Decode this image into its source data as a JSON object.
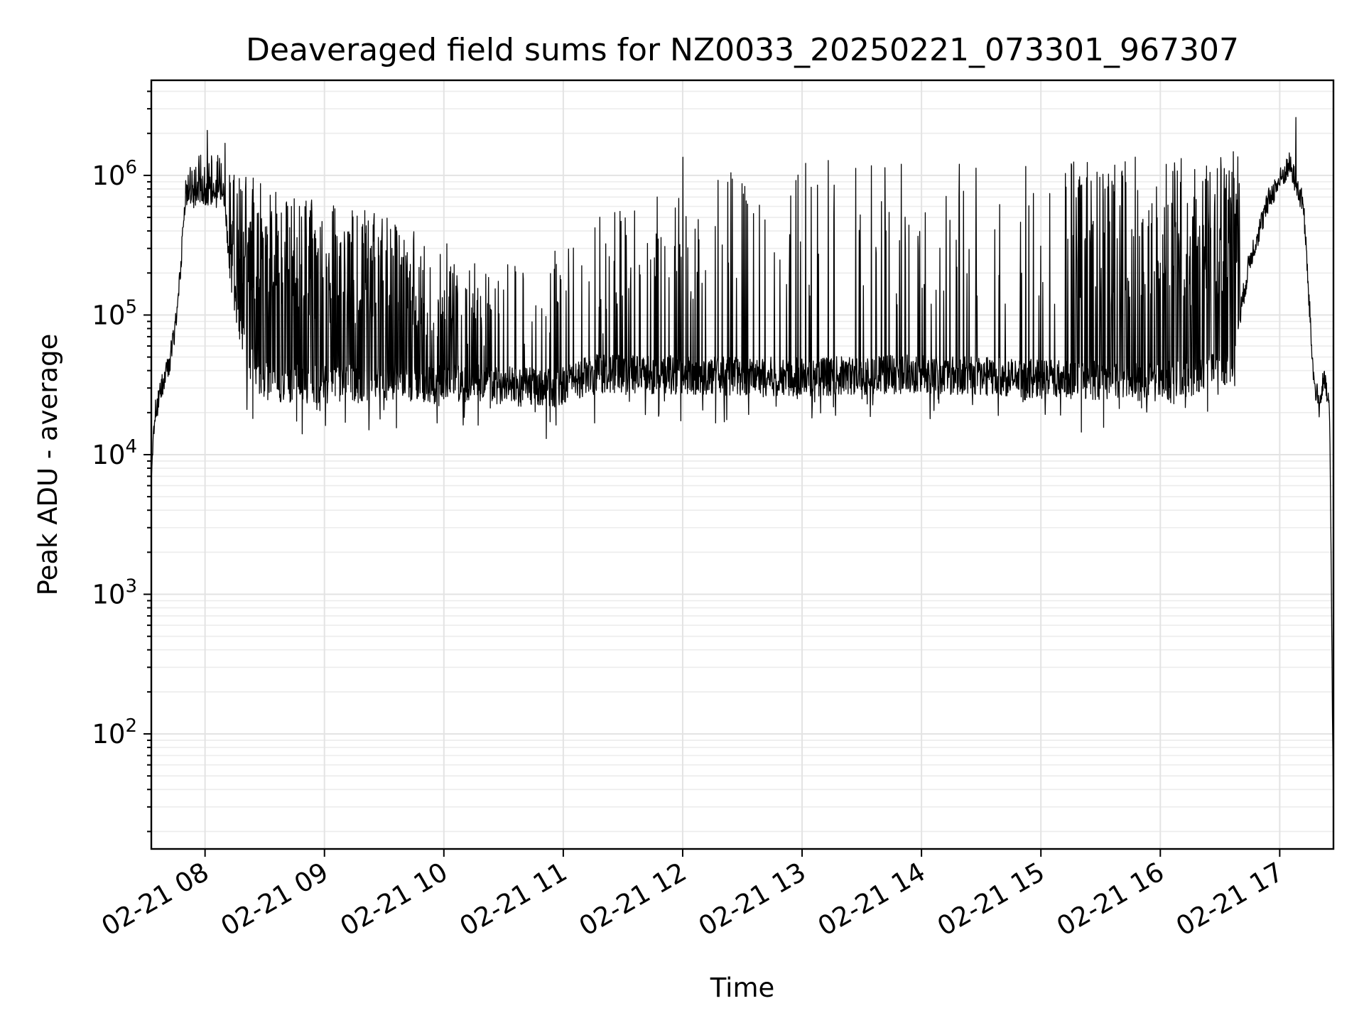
{
  "chart_data": {
    "type": "line",
    "title": "Deaveraged field sums for NZ0033_20250221_073301_967307",
    "xlabel": "Time",
    "ylabel": "Peak ADU - average",
    "yscale": "log",
    "ylim": [
      15,
      4800000
    ],
    "xlim": [
      "2025-02-21 07:33",
      "2025-02-21 17:27"
    ],
    "grid": "both (major and minor)",
    "line_color": "#000000",
    "x_ticks": [
      {
        "value": "2025-02-21 08:00",
        "label": "02-21 08"
      },
      {
        "value": "2025-02-21 09:00",
        "label": "02-21 09"
      },
      {
        "value": "2025-02-21 10:00",
        "label": "02-21 10"
      },
      {
        "value": "2025-02-21 11:00",
        "label": "02-21 11"
      },
      {
        "value": "2025-02-21 12:00",
        "label": "02-21 12"
      },
      {
        "value": "2025-02-21 13:00",
        "label": "02-21 13"
      },
      {
        "value": "2025-02-21 14:00",
        "label": "02-21 14"
      },
      {
        "value": "2025-02-21 15:00",
        "label": "02-21 15"
      },
      {
        "value": "2025-02-21 16:00",
        "label": "02-21 16"
      },
      {
        "value": "2025-02-21 17:00",
        "label": "02-21 17"
      }
    ],
    "y_ticks": [
      {
        "value": 100,
        "base": "10",
        "exp": "2"
      },
      {
        "value": 1000,
        "base": "10",
        "exp": "3"
      },
      {
        "value": 10000,
        "base": "10",
        "exp": "4"
      },
      {
        "value": 100000,
        "base": "10",
        "exp": "5"
      },
      {
        "value": 1000000,
        "base": "10",
        "exp": "6"
      }
    ],
    "series": [
      {
        "baseline": [
          [
            "2025-02-21 07:33",
            7000
          ],
          [
            "2025-02-21 07:35",
            20000
          ],
          [
            "2025-02-21 07:38",
            30000
          ],
          [
            "2025-02-21 07:42",
            45000
          ],
          [
            "2025-02-21 07:45",
            80000
          ],
          [
            "2025-02-21 07:48",
            250000
          ],
          [
            "2025-02-21 07:50",
            700000
          ],
          [
            "2025-02-21 08:00",
            750000
          ],
          [
            "2025-02-21 08:10",
            700000
          ],
          [
            "2025-02-21 08:12",
            250000
          ],
          [
            "2025-02-21 08:20",
            50000
          ],
          [
            "2025-02-21 08:30",
            33000
          ],
          [
            "2025-02-21 09:00",
            32000
          ],
          [
            "2025-02-21 10:00",
            33000
          ],
          [
            "2025-02-21 10:55",
            30000
          ],
          [
            "2025-02-21 11:15",
            38000
          ],
          [
            "2025-02-21 12:00",
            37000
          ],
          [
            "2025-02-21 13:00",
            36000
          ],
          [
            "2025-02-21 14:00",
            38000
          ],
          [
            "2025-02-21 15:00",
            35000
          ],
          [
            "2025-02-21 16:00",
            33000
          ],
          [
            "2025-02-21 16:35",
            40000
          ],
          [
            "2025-02-21 16:45",
            250000
          ],
          [
            "2025-02-21 16:55",
            700000
          ],
          [
            "2025-02-21 17:05",
            1200000
          ],
          [
            "2025-02-21 17:12",
            600000
          ],
          [
            "2025-02-21 17:17",
            35000
          ],
          [
            "2025-02-21 17:20",
            22000
          ],
          [
            "2025-02-21 17:22",
            35000
          ],
          [
            "2025-02-21 17:25",
            22000
          ],
          [
            "2025-02-21 17:26",
            1000
          ],
          [
            "2025-02-21 17:27",
            20
          ]
        ],
        "spike_envelope": [
          [
            "2025-02-21 07:52",
            1500000
          ],
          [
            "2025-02-21 08:15",
            1100000
          ],
          [
            "2025-02-21 08:45",
            700000
          ],
          [
            "2025-02-21 09:15",
            600000
          ],
          [
            "2025-02-21 09:45",
            450000
          ],
          [
            "2025-02-21 10:15",
            250000
          ],
          [
            "2025-02-21 10:45",
            250000
          ],
          [
            "2025-02-21 11:15",
            500000
          ],
          [
            "2025-02-21 11:45",
            700000
          ],
          [
            "2025-02-21 12:15",
            1100000
          ],
          [
            "2025-02-21 13:00",
            1300000
          ],
          [
            "2025-02-21 14:00",
            1300000
          ],
          [
            "2025-02-21 15:00",
            1300000
          ],
          [
            "2025-02-21 16:00",
            1400000
          ],
          [
            "2025-02-21 16:45",
            1500000
          ]
        ],
        "notable_peaks": [
          [
            "2025-02-21 08:01",
            2100000
          ],
          [
            "2025-02-21 08:10",
            1700000
          ],
          [
            "2025-02-21 12:00",
            1350000
          ],
          [
            "2025-02-21 17:08",
            2600000
          ]
        ]
      }
    ]
  }
}
